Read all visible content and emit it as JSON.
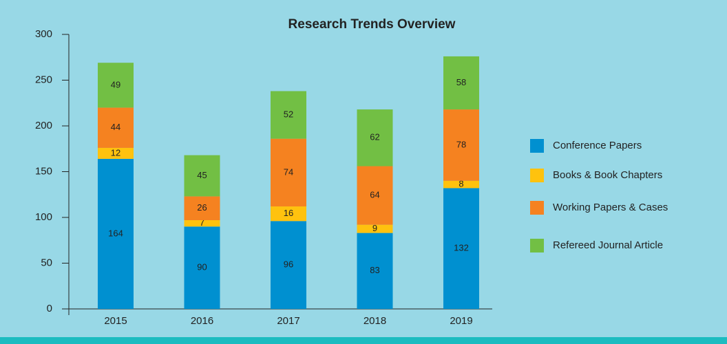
{
  "chart_data": {
    "type": "stacked_bar",
    "title": "Research Trends Overview",
    "categories": [
      "2015",
      "2016",
      "2017",
      "2018",
      "2019"
    ],
    "series": [
      {
        "name": "Conference Papers",
        "color": "#0090d0",
        "values": [
          164,
          90,
          96,
          83,
          132
        ]
      },
      {
        "name": "Books & Book Chapters",
        "color": "#ffc20e",
        "values": [
          12,
          7,
          16,
          9,
          8
        ]
      },
      {
        "name": "Working Papers & Cases",
        "color": "#f58220",
        "values": [
          44,
          26,
          74,
          64,
          78
        ]
      },
      {
        "name": "Refereed Journal Article",
        "color": "#72bf44",
        "values": [
          49,
          45,
          52,
          62,
          58
        ]
      }
    ],
    "ylim": [
      0,
      300
    ],
    "yticks": [
      0,
      50,
      100,
      150,
      200,
      250,
      300
    ],
    "grid": false,
    "legend": "right"
  }
}
